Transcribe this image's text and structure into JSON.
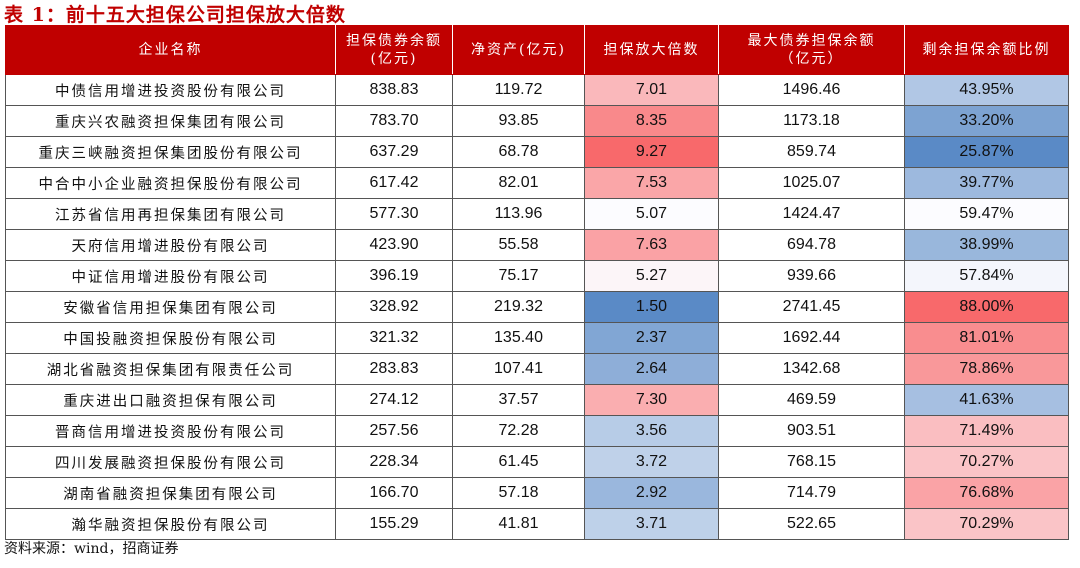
{
  "title": "表 1：前十五大担保公司担保放大倍数",
  "headers": [
    "企业名称",
    "担保债券余额\n(亿元)",
    "净资产(亿元)",
    "担保放大倍数",
    "最大债券担保余额\n（亿元）",
    "剩余担保余额比例"
  ],
  "rows": [
    [
      "中债信用增进投资股份有限公司",
      "838.83",
      "119.72",
      "7.01",
      "1496.46",
      "43.95%"
    ],
    [
      "重庆兴农融资担保集团有限公司",
      "783.70",
      "93.85",
      "8.35",
      "1173.18",
      "33.20%"
    ],
    [
      "重庆三峡融资担保集团股份有限公司",
      "637.29",
      "68.78",
      "9.27",
      "859.74",
      "25.87%"
    ],
    [
      "中合中小企业融资担保股份有限公司",
      "617.42",
      "82.01",
      "7.53",
      "1025.07",
      "39.77%"
    ],
    [
      "江苏省信用再担保集团有限公司",
      "577.30",
      "113.96",
      "5.07",
      "1424.47",
      "59.47%"
    ],
    [
      "天府信用增进股份有限公司",
      "423.90",
      "55.58",
      "7.63",
      "694.78",
      "38.99%"
    ],
    [
      "中证信用增进股份有限公司",
      "396.19",
      "75.17",
      "5.27",
      "939.66",
      "57.84%"
    ],
    [
      "安徽省信用担保集团有限公司",
      "328.92",
      "219.32",
      "1.50",
      "2741.45",
      "88.00%"
    ],
    [
      "中国投融资担保股份有限公司",
      "321.32",
      "135.40",
      "2.37",
      "1692.44",
      "81.01%"
    ],
    [
      "湖北省融资担保集团有限责任公司",
      "283.83",
      "107.41",
      "2.64",
      "1342.68",
      "78.86%"
    ],
    [
      "重庆进出口融资担保有限公司",
      "274.12",
      "37.57",
      "7.30",
      "469.59",
      "41.63%"
    ],
    [
      "晋商信用增进投资股份有限公司",
      "257.56",
      "72.28",
      "3.56",
      "903.51",
      "71.49%"
    ],
    [
      "四川发展融资担保股份有限公司",
      "228.34",
      "61.45",
      "3.72",
      "768.15",
      "70.27%"
    ],
    [
      "湖南省融资担保集团有限公司",
      "166.70",
      "57.18",
      "2.92",
      "714.79",
      "76.68%"
    ],
    [
      "瀚华融资担保股份有限公司",
      "155.29",
      "41.81",
      "3.71",
      "522.65",
      "70.29%"
    ]
  ],
  "source": "资料来源：wind，招商证券",
  "colors": {
    "header": "#c00000",
    "scale_high": "#f8696b",
    "scale_mid": "#fcfcff",
    "scale_low": "#5a8ac6"
  }
}
